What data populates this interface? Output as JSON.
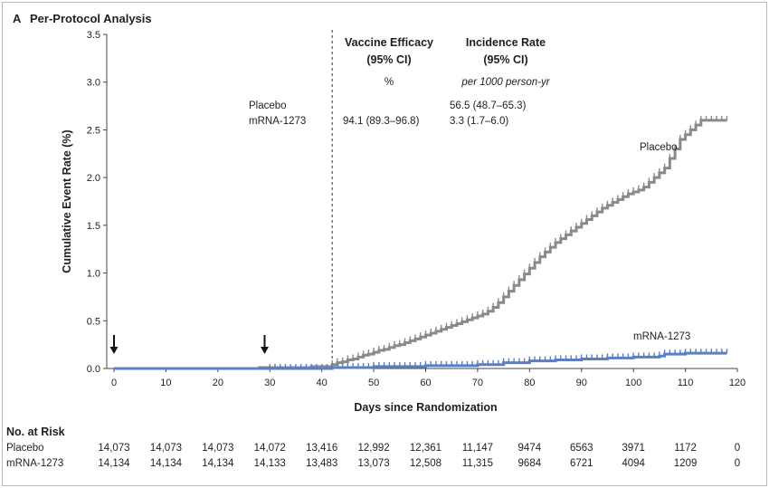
{
  "panel": {
    "letter": "A",
    "title": "Per-Protocol Analysis"
  },
  "chart_data": {
    "type": "line",
    "title": "",
    "xlabel": "Days since Randomization",
    "ylabel": "Cumulative Event Rate (%)",
    "xlim": [
      0,
      120
    ],
    "ylim": [
      0,
      3.5
    ],
    "x_ticks": [
      "0",
      "10",
      "20",
      "30",
      "40",
      "50",
      "60",
      "70",
      "80",
      "90",
      "100",
      "110",
      "120"
    ],
    "y_ticks": [
      "0.0",
      "0.5",
      "1.0",
      "1.5",
      "2.0",
      "2.5",
      "3.0",
      "3.5"
    ],
    "grid": false,
    "legend": "none",
    "colors": {
      "placebo": "#8a8a8a",
      "mrna": "#5b7fc7"
    },
    "series": [
      {
        "name": "Placebo",
        "label": "Placebo",
        "x": [
          0,
          28,
          38,
          42,
          43,
          44,
          45,
          46,
          47,
          48,
          49,
          50,
          51,
          52,
          53,
          54,
          55,
          56,
          57,
          58,
          59,
          60,
          61,
          62,
          63,
          64,
          65,
          66,
          67,
          68,
          69,
          70,
          71,
          72,
          73,
          74,
          75,
          76,
          77,
          78,
          79,
          80,
          81,
          82,
          83,
          84,
          85,
          86,
          87,
          88,
          89,
          90,
          91,
          92,
          93,
          94,
          95,
          96,
          97,
          98,
          99,
          100,
          101,
          102,
          103,
          104,
          105,
          106,
          107,
          108,
          109,
          110,
          111,
          112,
          113,
          114,
          115,
          116,
          117,
          118
        ],
        "y": [
          0.0,
          0.01,
          0.02,
          0.04,
          0.06,
          0.07,
          0.09,
          0.1,
          0.12,
          0.14,
          0.15,
          0.17,
          0.19,
          0.2,
          0.22,
          0.24,
          0.25,
          0.27,
          0.29,
          0.31,
          0.33,
          0.35,
          0.37,
          0.39,
          0.41,
          0.43,
          0.45,
          0.47,
          0.49,
          0.51,
          0.53,
          0.55,
          0.57,
          0.6,
          0.64,
          0.69,
          0.75,
          0.81,
          0.87,
          0.93,
          0.99,
          1.05,
          1.11,
          1.17,
          1.22,
          1.27,
          1.32,
          1.36,
          1.4,
          1.44,
          1.48,
          1.52,
          1.56,
          1.6,
          1.64,
          1.68,
          1.71,
          1.74,
          1.77,
          1.8,
          1.83,
          1.85,
          1.87,
          1.9,
          1.95,
          2.0,
          2.05,
          2.1,
          2.2,
          2.3,
          2.4,
          2.45,
          2.5,
          2.55,
          2.6,
          2.6,
          2.6,
          2.6,
          2.6,
          2.6
        ]
      },
      {
        "name": "mRNA-1273",
        "label": "mRNA-1273",
        "x": [
          0,
          30,
          42,
          50,
          60,
          70,
          75,
          80,
          85,
          90,
          95,
          100,
          105,
          106,
          110,
          118
        ],
        "y": [
          0.0,
          0.0,
          0.01,
          0.02,
          0.03,
          0.04,
          0.06,
          0.08,
          0.09,
          0.1,
          0.11,
          0.12,
          0.13,
          0.15,
          0.16,
          0.16
        ]
      }
    ],
    "reference_line_x": 42,
    "arrows_x": [
      0,
      29
    ]
  },
  "stats": {
    "header_efficacy_1": "Vaccine Efficacy",
    "header_efficacy_2": "(95% CI)",
    "header_incidence_1": "Incidence Rate",
    "header_incidence_2": "(95% CI)",
    "unit_efficacy": "%",
    "unit_incidence": "per 1000 person-yr",
    "rows": [
      {
        "group": "Placebo",
        "efficacy": "",
        "incidence": "56.5 (48.7–65.3)"
      },
      {
        "group": "mRNA-1273",
        "efficacy": "94.1 (89.3–96.8)",
        "incidence": "3.3 (1.7–6.0)"
      }
    ]
  },
  "risk_table": {
    "title": "No. at Risk",
    "rows": [
      {
        "group": "Placebo",
        "values": [
          "14,073",
          "14,073",
          "14,073",
          "14,072",
          "13,416",
          "12,992",
          "12,361",
          "11,147",
          "9474",
          "6563",
          "3971",
          "1172",
          "0"
        ]
      },
      {
        "group": "mRNA-1273",
        "values": [
          "14,134",
          "14,134",
          "14,134",
          "14,133",
          "13,483",
          "13,073",
          "12,508",
          "11,315",
          "9684",
          "6721",
          "4094",
          "1209",
          "0"
        ]
      }
    ]
  }
}
